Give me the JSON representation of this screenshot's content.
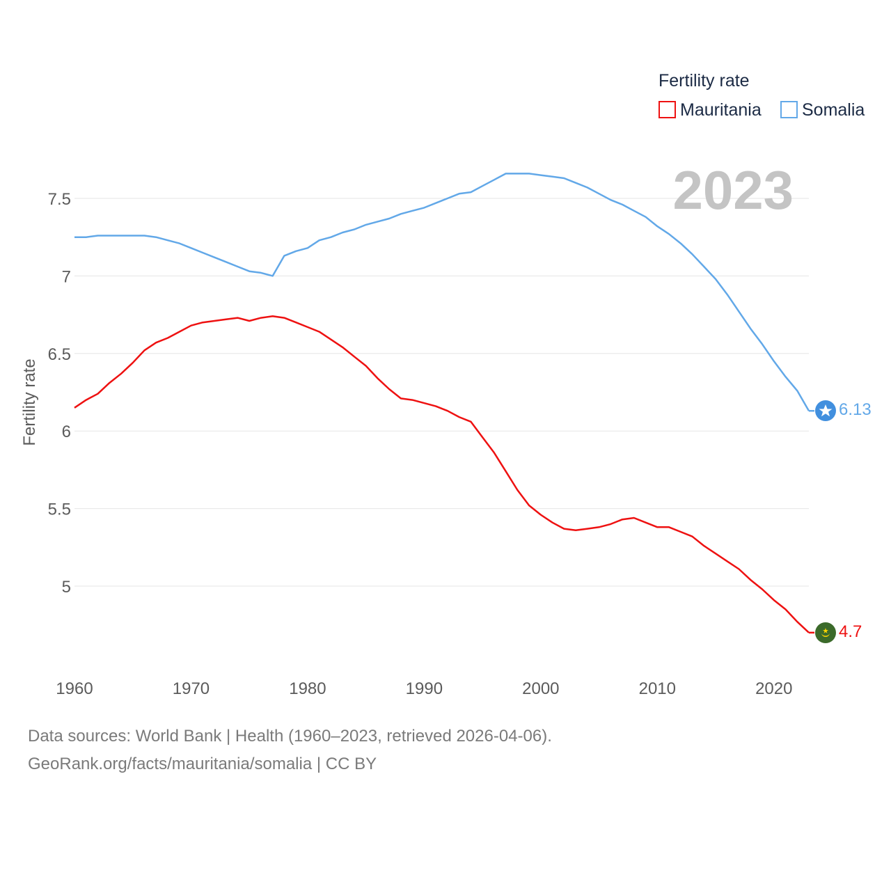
{
  "chart_data": {
    "type": "line",
    "year_label": "2023",
    "ylabel": "Fertility rate",
    "xlabel": "",
    "legend_title": "Fertility rate",
    "legend_position": "top-right",
    "grid": true,
    "xlim": [
      1960,
      2023
    ],
    "ylim": [
      4.5,
      7.8
    ],
    "x_ticks": [
      1960,
      1970,
      1980,
      1990,
      2000,
      2010,
      2020
    ],
    "y_ticks": [
      5,
      5.5,
      6,
      6.5,
      7,
      7.5
    ],
    "y_tick_labels": [
      "5",
      "5.5",
      "6",
      "6.5",
      "7",
      "7.5"
    ],
    "x": [
      1960,
      1961,
      1962,
      1963,
      1964,
      1965,
      1966,
      1967,
      1968,
      1969,
      1970,
      1971,
      1972,
      1973,
      1974,
      1975,
      1976,
      1977,
      1978,
      1979,
      1980,
      1981,
      1982,
      1983,
      1984,
      1985,
      1986,
      1987,
      1988,
      1989,
      1990,
      1991,
      1992,
      1993,
      1994,
      1995,
      1996,
      1997,
      1998,
      1999,
      2000,
      2001,
      2002,
      2003,
      2004,
      2005,
      2006,
      2007,
      2008,
      2009,
      2010,
      2011,
      2012,
      2013,
      2014,
      2015,
      2016,
      2017,
      2018,
      2019,
      2020,
      2021,
      2022,
      2023
    ],
    "series": [
      {
        "name": "Mauritania",
        "color": "#ee1111",
        "end_label": "4.7",
        "flag_icon": "mauritania-flag",
        "values": [
          6.15,
          6.2,
          6.24,
          6.31,
          6.37,
          6.44,
          6.52,
          6.57,
          6.6,
          6.64,
          6.68,
          6.7,
          6.71,
          6.72,
          6.73,
          6.71,
          6.73,
          6.74,
          6.73,
          6.7,
          6.67,
          6.64,
          6.59,
          6.54,
          6.48,
          6.42,
          6.34,
          6.27,
          6.21,
          6.2,
          6.18,
          6.16,
          6.13,
          6.09,
          6.06,
          5.96,
          5.86,
          5.74,
          5.62,
          5.52,
          5.46,
          5.41,
          5.37,
          5.36,
          5.37,
          5.38,
          5.4,
          5.43,
          5.44,
          5.41,
          5.38,
          5.38,
          5.35,
          5.32,
          5.26,
          5.21,
          5.16,
          5.11,
          5.04,
          4.98,
          4.91,
          4.85,
          4.77,
          4.7
        ]
      },
      {
        "name": "Somalia",
        "color": "#62a8e8",
        "end_label": "6.13",
        "flag_icon": "somalia-flag",
        "values": [
          7.25,
          7.25,
          7.26,
          7.26,
          7.26,
          7.26,
          7.26,
          7.25,
          7.23,
          7.21,
          7.18,
          7.15,
          7.12,
          7.09,
          7.06,
          7.03,
          7.02,
          7.0,
          7.13,
          7.16,
          7.18,
          7.23,
          7.25,
          7.28,
          7.3,
          7.33,
          7.35,
          7.37,
          7.4,
          7.42,
          7.44,
          7.47,
          7.5,
          7.53,
          7.54,
          7.58,
          7.62,
          7.66,
          7.66,
          7.66,
          7.65,
          7.64,
          7.63,
          7.6,
          7.57,
          7.53,
          7.49,
          7.46,
          7.42,
          7.38,
          7.32,
          7.27,
          7.21,
          7.14,
          7.06,
          6.98,
          6.88,
          6.77,
          6.66,
          6.56,
          6.45,
          6.35,
          6.26,
          6.13
        ]
      }
    ]
  },
  "colors": {
    "grid": "#e6e6e6",
    "tick_text": "#5b5b5b",
    "legend_text": "#1b2a44",
    "year_text": "#c4c4c4",
    "source_text": "#7a7a7a"
  },
  "footer": {
    "line1": "Data sources: World Bank | Health (1960–2023, retrieved 2026-04-06).",
    "line2": "GeoRank.org/facts/mauritania/somalia | CC BY"
  }
}
